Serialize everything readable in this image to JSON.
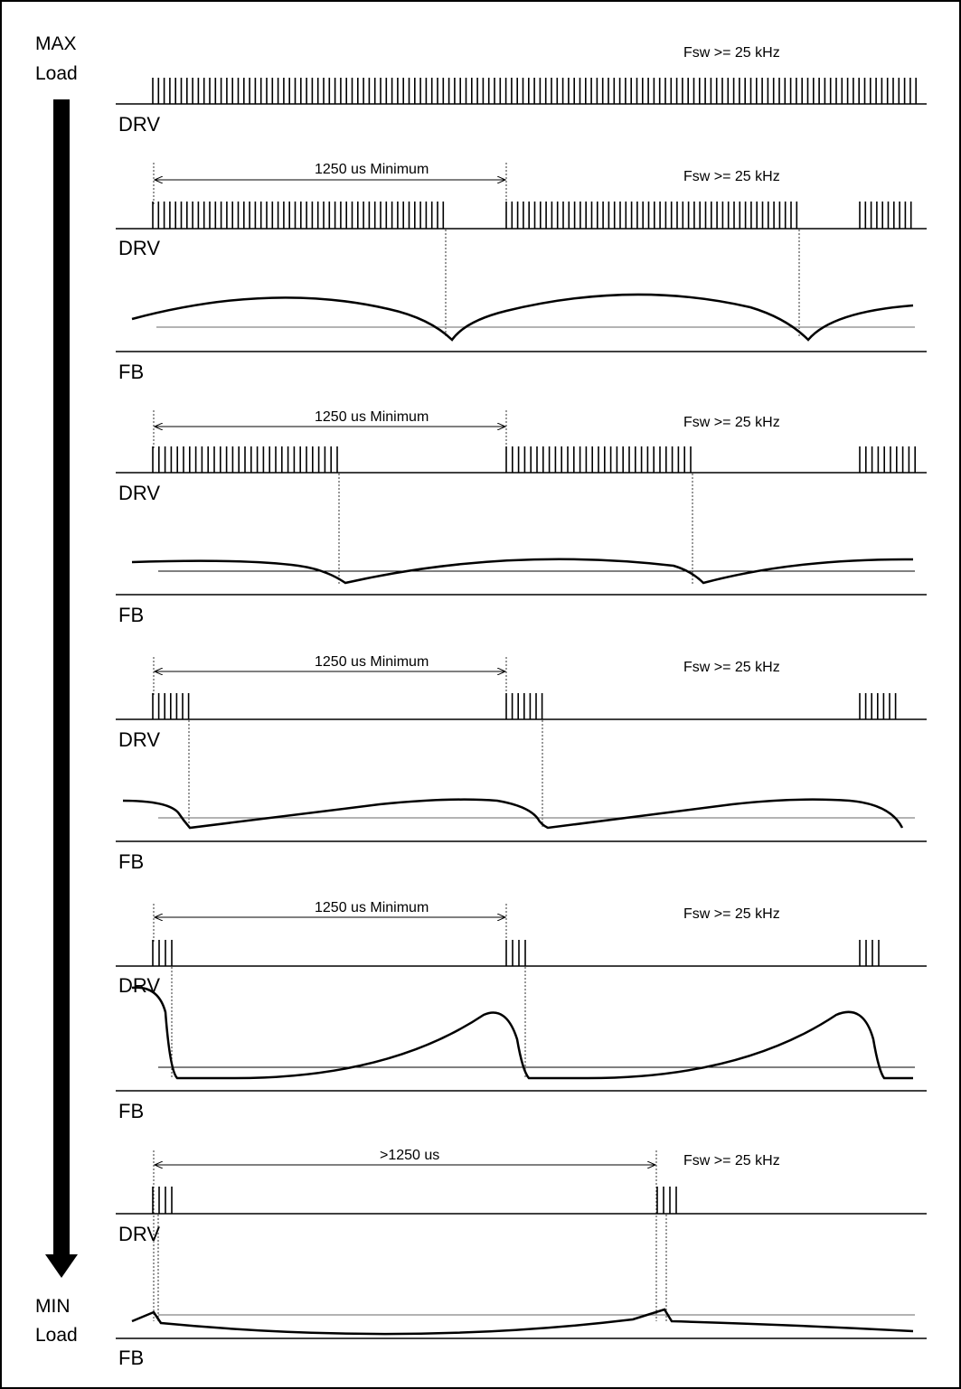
{
  "load_axis": {
    "top_line1": "MAX",
    "top_line2": "Load",
    "bottom_line1": "MIN",
    "bottom_line2": "Load"
  },
  "panels": [
    {
      "drv_label": "DRV",
      "freq_text": "Fsw >= 25 kHz"
    },
    {
      "drv_label": "DRV",
      "fb_label": "FB",
      "freq_text": "Fsw >= 25 kHz",
      "period_text": "1250 us Minimum"
    },
    {
      "drv_label": "DRV",
      "fb_label": "FB",
      "freq_text": "Fsw >= 25 kHz",
      "period_text": "1250 us Minimum"
    },
    {
      "drv_label": "DRV",
      "fb_label": "FB",
      "freq_text": "Fsw >= 25 kHz",
      "period_text": "1250 us Minimum"
    },
    {
      "drv_label": "DRV",
      "fb_label": "FB",
      "freq_text": "Fsw >= 25 kHz",
      "period_text": "1250 us Minimum"
    },
    {
      "drv_label": "DRV",
      "fb_label": "FB",
      "freq_text": "Fsw >= 25 kHz",
      "period_text": ">1250 us"
    }
  ],
  "colors": {
    "line": "#000000",
    "ref_line": "#9a9a9a"
  }
}
